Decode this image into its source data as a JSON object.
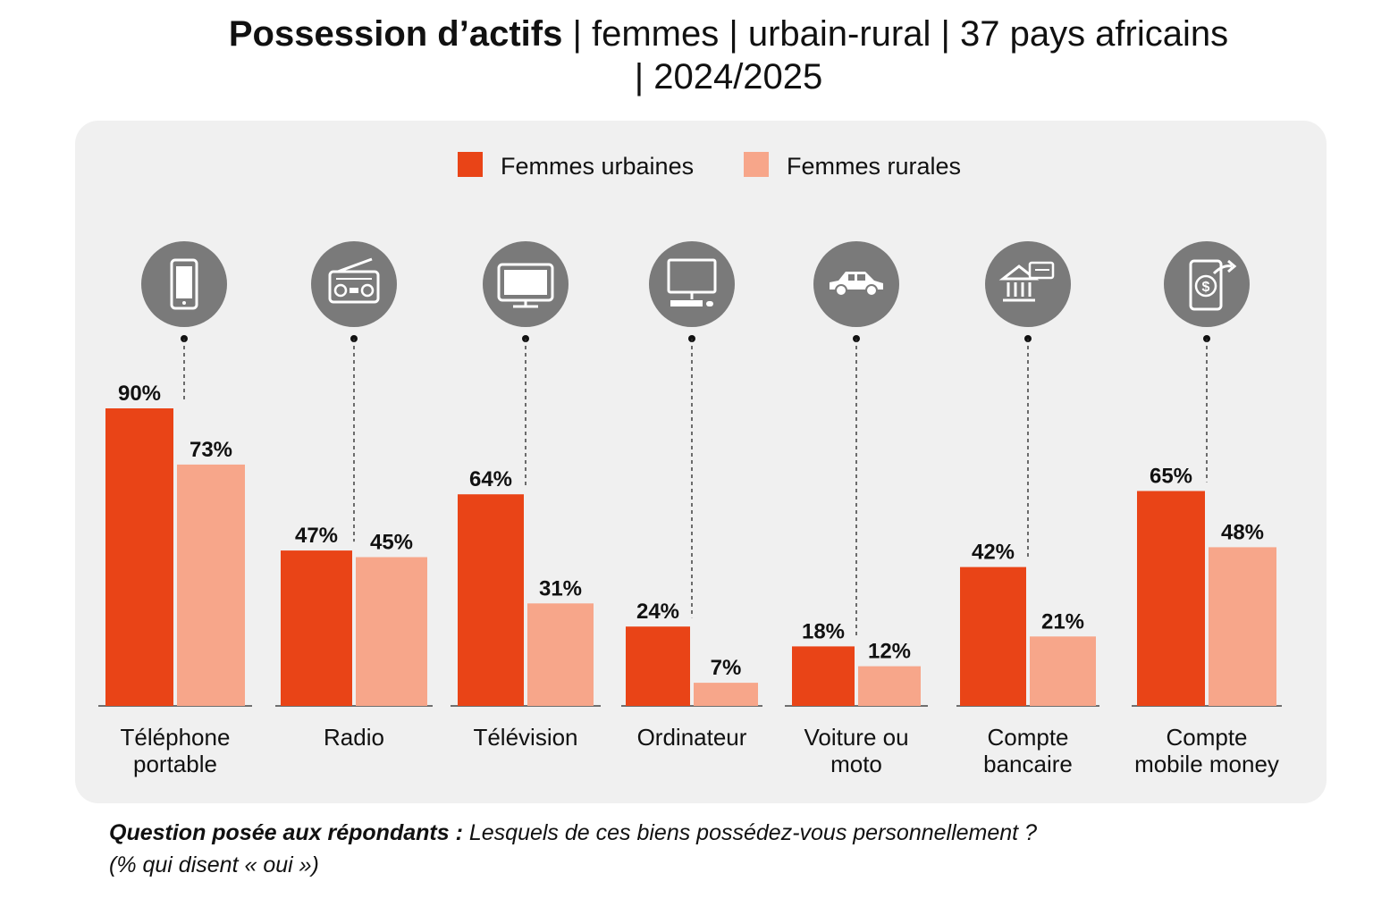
{
  "title": {
    "bold": "Possession d’actifs",
    "rest_line1": " | femmes | urbain-rural | 37 pays africains",
    "rest_line2": "| 2024/2025"
  },
  "footnote": {
    "question_label": "Question posée aux répondants :",
    "question_text": " Lesquels de ces biens possédez-vous personnellement ?",
    "note": "(% qui disent « oui »)"
  },
  "colors": {
    "urban": "#e94417",
    "rural": "#f7a68a",
    "icon_circle": "#7a7a7a",
    "panel": "#f0f0f0"
  },
  "chart_data": {
    "type": "bar",
    "title": "Possession d’actifs | femmes | urbain-rural | 37 pays africains | 2024/2025",
    "categories": [
      [
        "Téléphone",
        "portable"
      ],
      [
        "Radio"
      ],
      [
        "Télévision"
      ],
      [
        "Ordinateur"
      ],
      [
        "Voiture ou",
        "moto"
      ],
      [
        "Compte",
        "bancaire"
      ],
      [
        "Compte",
        "mobile money"
      ]
    ],
    "icons": [
      "smartphone-icon",
      "radio-icon",
      "television-icon",
      "computer-icon",
      "car-icon",
      "bank-card-icon",
      "mobile-money-icon"
    ],
    "series": [
      {
        "name": "Femmes urbaines",
        "values": [
          90,
          47,
          64,
          24,
          18,
          42,
          65
        ],
        "color": "#e94417"
      },
      {
        "name": "Femmes rurales",
        "values": [
          73,
          45,
          31,
          7,
          12,
          21,
          48
        ],
        "color": "#f7a68a"
      }
    ],
    "value_suffix": "%",
    "ylim": [
      0,
      100
    ],
    "grid": false,
    "legend_position": "top-center"
  }
}
